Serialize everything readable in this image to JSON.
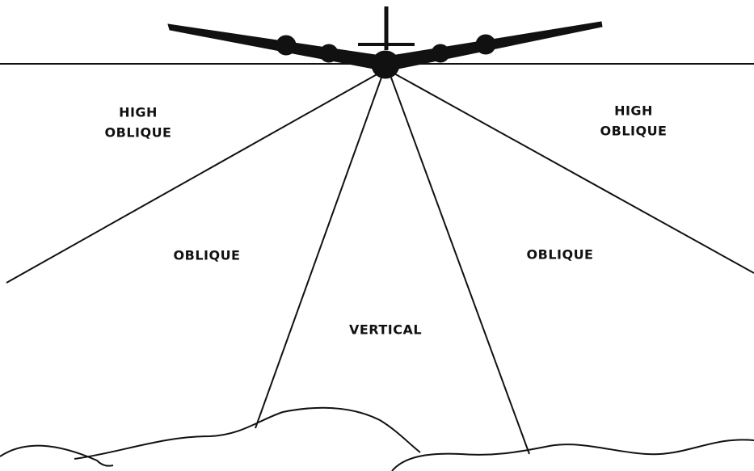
{
  "regions": [
    {
      "label_lines": [
        "HIGH",
        "OBLIQUE"
      ]
    },
    {
      "label_lines": [
        "OBLIQUE"
      ]
    },
    {
      "label_lines": [
        "VERTICAL"
      ]
    },
    {
      "label_lines": [
        "OBLIQUE"
      ]
    },
    {
      "label_lines": [
        "HIGH",
        "OBLIQUE"
      ]
    }
  ]
}
